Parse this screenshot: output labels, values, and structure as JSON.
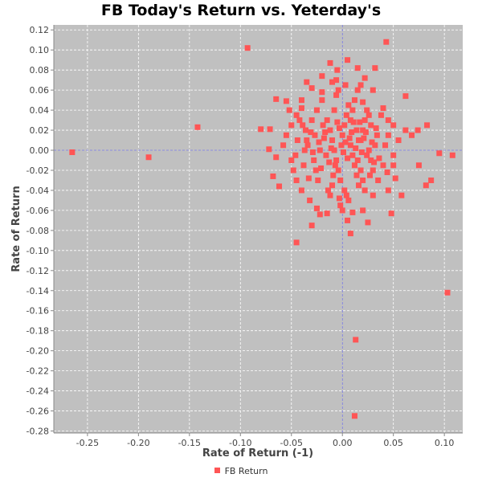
{
  "chart_data": {
    "type": "scatter",
    "title": "FB Today's Return vs. Yeterday's",
    "xlabel": "Rate of Return (-1)",
    "ylabel": "Rate of Return",
    "xlim": [
      -0.283,
      0.118
    ],
    "ylim": [
      -0.282,
      0.125
    ],
    "xticks": [
      -0.25,
      -0.2,
      -0.15,
      -0.1,
      -0.05,
      0.0,
      0.05,
      0.1
    ],
    "xtick_labels": [
      "-0.25",
      "-0.20",
      "-0.15",
      "-0.10",
      "-0.05",
      "0.00",
      "0.05",
      "0.10"
    ],
    "yticks": [
      0.12,
      0.1,
      0.08,
      0.06,
      0.04,
      0.02,
      0.0,
      -0.02,
      -0.04,
      -0.06,
      -0.08,
      -0.1,
      -0.12,
      -0.14,
      -0.16,
      -0.18,
      -0.2,
      -0.22,
      -0.24,
      -0.26,
      -0.28
    ],
    "ytick_labels": [
      "0.12",
      "0.10",
      "0.08",
      "0.06",
      "0.04",
      "0.02",
      "0.00",
      "-0.02",
      "-0.04",
      "-0.06",
      "-0.08",
      "-0.10",
      "-0.12",
      "-0.14",
      "-0.16",
      "-0.18",
      "-0.20",
      "-0.22",
      "-0.24",
      "-0.26",
      "-0.28"
    ],
    "grid": true,
    "legend_position": "bottom-center",
    "series": [
      {
        "name": "FB Return",
        "color": "#ff5555",
        "points": [
          [
            -0.265,
            -0.002
          ],
          [
            -0.19,
            -0.007
          ],
          [
            -0.142,
            0.023
          ],
          [
            -0.093,
            0.102
          ],
          [
            0.043,
            0.108
          ],
          [
            0.103,
            -0.142
          ],
          [
            0.013,
            -0.189
          ],
          [
            0.012,
            -0.265
          ],
          [
            0.108,
            -0.005
          ],
          [
            0.095,
            -0.003
          ],
          [
            0.087,
            -0.03
          ],
          [
            0.082,
            -0.035
          ],
          [
            0.083,
            0.025
          ],
          [
            0.074,
            0.02
          ],
          [
            0.068,
            0.015
          ],
          [
            0.062,
            0.02
          ],
          [
            0.062,
            0.054
          ],
          [
            0.048,
            -0.063
          ],
          [
            0.045,
            -0.04
          ],
          [
            0.075,
            -0.015
          ],
          [
            0.058,
            -0.045
          ],
          [
            0.032,
            0.082
          ],
          [
            0.03,
            0.06
          ],
          [
            0.015,
            0.082
          ],
          [
            0.022,
            0.072
          ],
          [
            0.005,
            0.09
          ],
          [
            -0.012,
            0.087
          ],
          [
            -0.005,
            0.08
          ],
          [
            -0.02,
            0.074
          ],
          [
            -0.035,
            0.068
          ],
          [
            -0.03,
            0.062
          ],
          [
            -0.065,
            0.051
          ],
          [
            -0.055,
            0.049
          ],
          [
            -0.08,
            0.021
          ],
          [
            -0.071,
            0.021
          ],
          [
            -0.072,
            0.001
          ],
          [
            -0.065,
            -0.007
          ],
          [
            -0.068,
            -0.026
          ],
          [
            -0.062,
            -0.036
          ],
          [
            -0.045,
            -0.092
          ],
          [
            -0.03,
            -0.075
          ],
          [
            -0.022,
            -0.064
          ],
          [
            -0.015,
            -0.063
          ],
          [
            0.005,
            -0.07
          ],
          [
            0.025,
            -0.072
          ],
          [
            0.008,
            -0.083
          ],
          [
            -0.002,
            -0.055
          ],
          [
            0.02,
            -0.06
          ],
          [
            0.04,
            -0.015
          ],
          [
            0.05,
            -0.005
          ],
          [
            0.055,
            0.01
          ],
          [
            0.052,
            -0.028
          ],
          [
            0.035,
            -0.03
          ],
          [
            0.038,
            0.035
          ],
          [
            0.04,
            0.042
          ],
          [
            0.05,
            0.025
          ],
          [
            0.045,
            0.015
          ],
          [
            -0.04,
            0.05
          ],
          [
            -0.045,
            0.035
          ],
          [
            -0.05,
            0.025
          ],
          [
            -0.055,
            0.015
          ],
          [
            -0.058,
            0.005
          ],
          [
            -0.05,
            -0.01
          ],
          [
            -0.048,
            -0.02
          ],
          [
            -0.045,
            -0.03
          ],
          [
            -0.04,
            -0.04
          ],
          [
            -0.035,
            0.01
          ],
          [
            -0.03,
            0.03
          ],
          [
            -0.025,
            0.04
          ],
          [
            -0.02,
            0.05
          ],
          [
            -0.015,
            0.03
          ],
          [
            -0.012,
            0.02
          ],
          [
            -0.01,
            0.01
          ],
          [
            -0.008,
            0.0
          ],
          [
            -0.006,
            -0.01
          ],
          [
            -0.004,
            -0.02
          ],
          [
            -0.002,
            -0.03
          ],
          [
            0.0,
            0.015
          ],
          [
            0.002,
            0.025
          ],
          [
            0.004,
            0.035
          ],
          [
            0.006,
            0.045
          ],
          [
            0.008,
            0.005
          ],
          [
            0.01,
            -0.005
          ],
          [
            0.012,
            -0.015
          ],
          [
            0.014,
            -0.025
          ],
          [
            0.016,
            -0.035
          ],
          [
            0.018,
            0.01
          ],
          [
            0.02,
            0.02
          ],
          [
            0.022,
            0.03
          ],
          [
            0.024,
            0.04
          ],
          [
            0.026,
            0.0
          ],
          [
            0.028,
            -0.01
          ],
          [
            0.03,
            -0.02
          ],
          [
            0.032,
            0.005
          ],
          [
            0.034,
            0.015
          ],
          [
            -0.028,
            -0.01
          ],
          [
            -0.026,
            -0.02
          ],
          [
            -0.024,
            -0.03
          ],
          [
            -0.022,
            0.0
          ],
          [
            -0.018,
            0.012
          ],
          [
            -0.016,
            -0.005
          ],
          [
            -0.014,
            -0.04
          ],
          [
            -0.012,
            -0.045
          ],
          [
            -0.01,
            -0.035
          ],
          [
            -0.008,
            0.04
          ],
          [
            -0.006,
            0.055
          ],
          [
            -0.004,
            0.06
          ],
          [
            0.002,
            -0.04
          ],
          [
            0.004,
            -0.045
          ],
          [
            0.006,
            -0.05
          ],
          [
            0.008,
            0.03
          ],
          [
            0.01,
            0.04
          ],
          [
            0.012,
            0.05
          ],
          [
            0.014,
            0.02
          ],
          [
            0.016,
            0.01
          ],
          [
            0.018,
            -0.02
          ],
          [
            0.02,
            -0.03
          ],
          [
            0.022,
            -0.04
          ],
          [
            -0.032,
            -0.05
          ],
          [
            -0.034,
            0.005
          ],
          [
            -0.036,
            0.02
          ],
          [
            -0.038,
            -0.015
          ],
          [
            0.028,
            0.025
          ],
          [
            0.026,
            0.035
          ],
          [
            0.024,
            -0.005
          ],
          [
            0.036,
            -0.008
          ],
          [
            0.042,
            0.005
          ],
          [
            0.044,
            -0.022
          ],
          [
            -0.042,
            0.03
          ],
          [
            -0.044,
            0.01
          ],
          [
            -0.046,
            -0.005
          ],
          [
            -0.001,
            0.005
          ],
          [
            0.001,
            -0.002
          ],
          [
            0.003,
            0.008
          ],
          [
            0.005,
            -0.008
          ],
          [
            0.007,
            0.012
          ],
          [
            0.009,
            0.018
          ],
          [
            0.011,
            0.028
          ],
          [
            -0.003,
            0.022
          ],
          [
            -0.005,
            0.028
          ],
          [
            -0.007,
            -0.015
          ],
          [
            -0.009,
            -0.025
          ],
          [
            -0.011,
            0.002
          ],
          [
            -0.013,
            -0.012
          ],
          [
            -0.017,
            0.018
          ],
          [
            -0.019,
            0.025
          ],
          [
            -0.021,
            -0.018
          ],
          [
            -0.023,
            0.008
          ],
          [
            0.013,
            0.002
          ],
          [
            0.015,
            -0.01
          ],
          [
            0.017,
            0.028
          ],
          [
            0.019,
            -0.002
          ],
          [
            0.021,
            0.012
          ],
          [
            0.023,
            0.018
          ],
          [
            0.027,
            -0.025
          ],
          [
            0.029,
            0.008
          ],
          [
            0.031,
            -0.012
          ],
          [
            0.033,
            0.022
          ],
          [
            -0.027,
            0.015
          ],
          [
            -0.029,
            -0.002
          ],
          [
            -0.031,
            0.018
          ],
          [
            -0.033,
            -0.028
          ],
          [
            -0.037,
            0.0
          ],
          [
            -0.039,
            0.025
          ],
          [
            0.0,
            -0.06
          ],
          [
            -0.003,
            -0.048
          ],
          [
            0.003,
            0.065
          ],
          [
            -0.01,
            0.068
          ],
          [
            0.015,
            0.06
          ],
          [
            0.02,
            0.048
          ],
          [
            -0.02,
            0.058
          ],
          [
            -0.025,
            -0.058
          ],
          [
            0.01,
            -0.062
          ],
          [
            0.03,
            -0.045
          ],
          [
            -0.04,
            0.042
          ],
          [
            0.045,
            0.03
          ],
          [
            -0.052,
            0.04
          ],
          [
            0.05,
            -0.015
          ],
          [
            -0.006,
            0.07
          ],
          [
            0.018,
            0.065
          ]
        ]
      }
    ]
  }
}
